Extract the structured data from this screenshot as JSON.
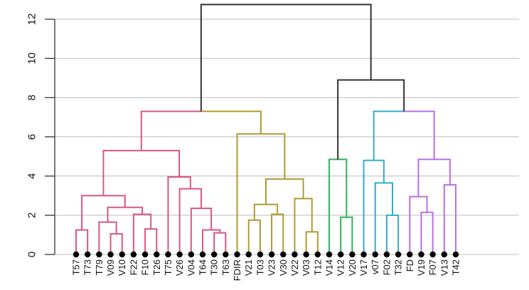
{
  "chart_data": {
    "type": "dendrogram",
    "title": "",
    "xlabel": "",
    "ylabel": "",
    "ylim": [
      0,
      12.8
    ],
    "yticks": [
      0,
      2,
      4,
      6,
      8,
      10,
      12
    ],
    "grid": true,
    "leaves": [
      "T57",
      "T73",
      "T79",
      "V09",
      "V10",
      "F22",
      "F10",
      "T26",
      "T75",
      "V26",
      "V04",
      "T64",
      "T30",
      "T63",
      "FDIR",
      "V21",
      "T03",
      "V23",
      "V30",
      "V22",
      "V03",
      "T12",
      "V14",
      "V12",
      "V20",
      "V17",
      "v07",
      "F02",
      "T32",
      "FD",
      "V19",
      "F07",
      "V13",
      "T42"
    ],
    "clusters": [
      {
        "name": "cluster-1",
        "color": "#d9577f",
        "leaves": [
          "T57",
          "T73",
          "T79",
          "V09",
          "V10",
          "F22",
          "F10",
          "T26",
          "T75",
          "V26",
          "V04",
          "T64",
          "T30",
          "T63"
        ]
      },
      {
        "name": "cluster-2",
        "color": "#b09a2e",
        "leaves": [
          "FDIR",
          "V21",
          "T03",
          "V23",
          "V30",
          "V22",
          "V03",
          "T12"
        ]
      },
      {
        "name": "cluster-3",
        "color": "#2fb35a",
        "leaves": [
          "V14",
          "V12",
          "V20"
        ]
      },
      {
        "name": "cluster-4",
        "color": "#35a9d0",
        "leaves": [
          "V17",
          "v07",
          "F02",
          "T32"
        ]
      },
      {
        "name": "cluster-5",
        "color": "#b96ee8",
        "leaves": [
          "FD",
          "V19",
          "F07",
          "V13",
          "T42"
        ]
      }
    ],
    "merges": [
      {
        "id": "a1",
        "left": "T57",
        "right": "T73",
        "height": 1.25,
        "color": "#d9577f"
      },
      {
        "id": "a2",
        "left": "V09",
        "right": "V10",
        "height": 1.05,
        "color": "#d9577f"
      },
      {
        "id": "a3",
        "left": "T79",
        "right": "a2",
        "height": 1.65,
        "color": "#d9577f"
      },
      {
        "id": "a4",
        "left": "F10",
        "right": "T26",
        "height": 1.3,
        "color": "#d9577f"
      },
      {
        "id": "a5",
        "left": "F22",
        "right": "a4",
        "height": 2.05,
        "color": "#d9577f"
      },
      {
        "id": "a6",
        "left": "a3",
        "right": "a5",
        "height": 2.4,
        "color": "#d9577f"
      },
      {
        "id": "a7",
        "left": "a1",
        "right": "a6",
        "height": 3.0,
        "color": "#d9577f"
      },
      {
        "id": "a8",
        "left": "T30",
        "right": "T63",
        "height": 1.1,
        "color": "#d9577f"
      },
      {
        "id": "a9",
        "left": "T64",
        "right": "a8",
        "height": 1.25,
        "color": "#d9577f"
      },
      {
        "id": "a10",
        "left": "V04",
        "right": "a9",
        "height": 2.35,
        "color": "#d9577f"
      },
      {
        "id": "a11",
        "left": "V26",
        "right": "a10",
        "height": 3.35,
        "color": "#d9577f"
      },
      {
        "id": "a12",
        "left": "T75",
        "right": "a11",
        "height": 3.95,
        "color": "#d9577f"
      },
      {
        "id": "a13",
        "left": "a7",
        "right": "a12",
        "height": 5.3,
        "color": "#d9577f"
      },
      {
        "id": "b1",
        "left": "V21",
        "right": "T03",
        "height": 1.75,
        "color": "#b09a2e"
      },
      {
        "id": "b2",
        "left": "V23",
        "right": "V30",
        "height": 2.05,
        "color": "#b09a2e"
      },
      {
        "id": "b3",
        "left": "b1",
        "right": "b2",
        "height": 2.55,
        "color": "#b09a2e"
      },
      {
        "id": "b4",
        "left": "V03",
        "right": "T12",
        "height": 1.15,
        "color": "#b09a2e"
      },
      {
        "id": "b5",
        "left": "V22",
        "right": "b4",
        "height": 2.85,
        "color": "#b09a2e"
      },
      {
        "id": "b6",
        "left": "b3",
        "right": "b5",
        "height": 3.85,
        "color": "#b09a2e"
      },
      {
        "id": "b7",
        "left": "FDIR",
        "right": "b6",
        "height": 6.15,
        "color": "#b09a2e"
      },
      {
        "id": "ab",
        "left": "a13",
        "right": "b7",
        "height": 7.3,
        "color": "split"
      },
      {
        "id": "c1",
        "left": "V12",
        "right": "V20",
        "height": 1.9,
        "color": "#2fb35a"
      },
      {
        "id": "c2",
        "left": "V14",
        "right": "c1",
        "height": 4.85,
        "color": "#2fb35a"
      },
      {
        "id": "d1",
        "left": "F02",
        "right": "T32",
        "height": 2.0,
        "color": "#35a9d0"
      },
      {
        "id": "d2",
        "left": "v07",
        "right": "d1",
        "height": 3.65,
        "color": "#35a9d0"
      },
      {
        "id": "d3",
        "left": "V17",
        "right": "d2",
        "height": 4.8,
        "color": "#35a9d0"
      },
      {
        "id": "e1",
        "left": "V19",
        "right": "F07",
        "height": 2.15,
        "color": "#b96ee8"
      },
      {
        "id": "e2",
        "left": "FD",
        "right": "e1",
        "height": 2.95,
        "color": "#b96ee8"
      },
      {
        "id": "e3",
        "left": "V13",
        "right": "T42",
        "height": 3.55,
        "color": "#b96ee8"
      },
      {
        "id": "e4",
        "left": "e2",
        "right": "e3",
        "height": 4.85,
        "color": "#b96ee8"
      },
      {
        "id": "de",
        "left": "d3",
        "right": "e4",
        "height": 7.3,
        "color": "split"
      },
      {
        "id": "cde",
        "left": "c2",
        "right": "de",
        "height": 8.9,
        "color": "#333333"
      },
      {
        "id": "root",
        "left": "ab",
        "right": "cde",
        "height": 12.75,
        "color": "#333333"
      }
    ]
  },
  "colors": {
    "axis": "#333333",
    "grid": "#bdbdbd",
    "leaf_dot": "#000000",
    "root_branch": "#333333"
  }
}
